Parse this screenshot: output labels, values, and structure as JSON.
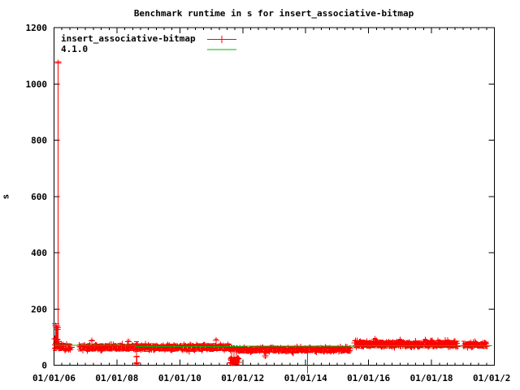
{
  "title": "Benchmark runtime in s for insert_associative-bitmap",
  "ylabel": "s",
  "colors": {
    "axis": "#000000",
    "background": "#ffffff",
    "series1": "#ff0000",
    "series2": "#00b400"
  },
  "legend": {
    "position": "top-left-inside",
    "items": [
      {
        "label": "insert_associative-bitmap",
        "color": "#ff0000",
        "sample": "errorbar-plus"
      },
      {
        "label": "4.1.0",
        "color": "#00b400",
        "sample": "line"
      }
    ]
  },
  "chart_data": {
    "type": "scatter",
    "title": "Benchmark runtime in s for insert_associative-bitmap",
    "xlabel": "",
    "ylabel": "s",
    "grid": false,
    "legend_position": "top-left-inside",
    "x_axis": {
      "kind": "date",
      "range_years": [
        2006.0,
        2020.0
      ],
      "major_tick_years": [
        2006,
        2008,
        2010,
        2012,
        2014,
        2016,
        2018,
        2020
      ],
      "tick_labels": [
        "01/01/06",
        "01/01/08",
        "01/01/10",
        "01/01/12",
        "01/01/14",
        "01/01/16",
        "01/01/18",
        "01/01/2"
      ],
      "last_label_clipped_at_image_edge": true,
      "minor_ticks_per_major_interval": 7
    },
    "y_axis": {
      "range": [
        0,
        1200
      ],
      "ticks": [
        0,
        200,
        400,
        600,
        800,
        1000,
        1200
      ],
      "tick_labels": [
        "0",
        "200",
        "400",
        "600",
        "800",
        "1000",
        "1200"
      ]
    },
    "series": [
      {
        "name": "insert_associative-bitmap",
        "color": "#ff0000",
        "style": "points-with-errorbars",
        "marker": "plus",
        "summary": "Dense daily benchmark runs forming a solid band ~50-90 s from 2006 to late 2019; startup spike to ~1075 s in early 2006 with points ~125-140 s; low outlier ~8-30 s in late 2008; dip block ~3-30 s in mid/late 2011; error bar below 0 near start of 2014; band steps up to ~60-90 s after mid-2015; short gaps mid-2006, mid-2015 and late 2018.",
        "band_segments": [
          {
            "t0": 2006.02,
            "t1": 2006.17,
            "lo": 52,
            "hi": 96,
            "spacing": 0.9
          },
          {
            "t0": 2006.17,
            "t1": 2006.55,
            "lo": 50,
            "hi": 78,
            "spacing": 1.1
          },
          {
            "t0": 2006.8,
            "t1": 2011.58,
            "lo": 49,
            "hi": 77,
            "spacing": 1.1
          },
          {
            "t0": 2011.6,
            "t1": 2011.88,
            "lo": 3,
            "hi": 29,
            "spacing": 0.8
          },
          {
            "t0": 2011.6,
            "t1": 2011.88,
            "lo": 53,
            "hi": 64,
            "spacing": 1.1
          },
          {
            "t0": 2011.88,
            "t1": 2015.42,
            "lo": 43,
            "hi": 67,
            "spacing": 1.1
          },
          {
            "t0": 2015.56,
            "t1": 2018.82,
            "lo": 61,
            "hi": 89,
            "spacing": 1.0
          },
          {
            "t0": 2019.02,
            "t1": 2019.75,
            "lo": 60,
            "hi": 85,
            "spacing": 1.0
          }
        ],
        "outliers": [
          {
            "t": 2006.05,
            "v": 140,
            "lo": 60,
            "hi": 147,
            "cap": 4.5
          },
          {
            "t": 2006.075,
            "v": 133,
            "lo": 58,
            "hi": 140,
            "cap": 4.5
          },
          {
            "t": 2006.1,
            "v": 127,
            "lo": 57,
            "hi": 134,
            "cap": 4.5
          },
          {
            "t": 2006.13,
            "v": 1075,
            "lo": 62,
            "hi": 1079,
            "cap": 4
          },
          {
            "t": 2007.2,
            "v": 86,
            "lo": 70,
            "hi": 90,
            "cap": 2.5
          },
          {
            "t": 2008.36,
            "v": 84,
            "lo": 68,
            "hi": 88,
            "cap": 2.5
          },
          {
            "t": 2008.62,
            "v": 30,
            "lo": 6,
            "hi": 84,
            "cap": 3
          },
          {
            "t": 2008.64,
            "v": 8,
            "lo": 5,
            "hi": 32,
            "cap": 3
          },
          {
            "t": 2011.15,
            "v": 88,
            "lo": 56,
            "hi": 92,
            "cap": 2.5
          },
          {
            "t": 2011.65,
            "v": 18,
            "lo": 5,
            "hi": 58,
            "cap": 2.5
          },
          {
            "t": 2011.72,
            "v": 12,
            "lo": 4,
            "hi": 57,
            "cap": 2.5
          },
          {
            "t": 2011.8,
            "v": 20,
            "lo": 5,
            "hi": 58,
            "cap": 2.5
          },
          {
            "t": 2012.72,
            "v": 33,
            "lo": 27,
            "hi": 58,
            "cap": 2.5
          },
          {
            "t": 2014.06,
            "v": 55,
            "lo": -29,
            "hi": 60,
            "cap": 0
          },
          {
            "t": 2016.2,
            "v": 92,
            "lo": 70,
            "hi": 95,
            "cap": 2.5
          },
          {
            "t": 2017.0,
            "v": 90,
            "lo": 70,
            "hi": 93,
            "cap": 2.5
          },
          {
            "t": 2017.8,
            "v": 89,
            "lo": 70,
            "hi": 92,
            "cap": 2.5
          }
        ]
      },
      {
        "name": "4.1.0",
        "color": "#00b400",
        "style": "line",
        "points": [
          [
            2006.0,
            71
          ],
          [
            2008.6,
            71
          ],
          [
            2008.6,
            67
          ],
          [
            2012.0,
            67
          ],
          [
            2012.0,
            68.5
          ],
          [
            2015.5,
            68.5
          ],
          [
            2015.5,
            69.5
          ],
          [
            2019.92,
            69.5
          ]
        ]
      }
    ]
  }
}
